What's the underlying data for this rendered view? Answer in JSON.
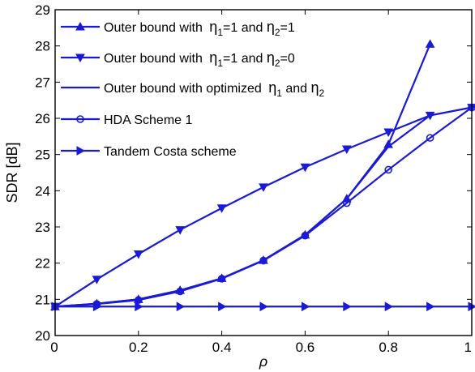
{
  "chart_data": {
    "type": "line",
    "xlabel": "ρ",
    "ylabel": "SDR [dB]",
    "xlim": [
      0,
      1
    ],
    "ylim": [
      20,
      29
    ],
    "xticks": [
      0,
      0.2,
      0.4,
      0.6,
      0.8,
      1
    ],
    "yticks": [
      20,
      21,
      22,
      23,
      24,
      25,
      26,
      27,
      28,
      29
    ],
    "xtick_labels": [
      "0",
      "0.2",
      "0.4",
      "0.6",
      "0.8",
      "1"
    ],
    "ytick_labels": [
      "20",
      "21",
      "22",
      "23",
      "24",
      "25",
      "26",
      "27",
      "28",
      "29"
    ],
    "grid": false,
    "legend_placement": "top-left",
    "line_color": "#1a1ad6",
    "series": [
      {
        "legend_pre": "Outer bound with ",
        "legend_mid": "η",
        "legend_sub1": "1",
        "legend_txt2": "=1 and ",
        "legend_mid2": "η",
        "legend_sub2": "2",
        "legend_txt3": "=1",
        "marker": "triangle-up",
        "x": [
          0,
          0.1,
          0.2,
          0.3,
          0.4,
          0.5,
          0.6,
          0.7,
          0.8,
          0.9
        ],
        "y": [
          20.8,
          20.88,
          21.0,
          21.25,
          21.58,
          22.08,
          22.78,
          23.78,
          25.28,
          28.05
        ]
      },
      {
        "legend_pre": "Outer bound with ",
        "legend_mid": "η",
        "legend_sub1": "1",
        "legend_txt2": "=1 and ",
        "legend_mid2": "η",
        "legend_sub2": "2",
        "legend_txt3": "=0",
        "marker": "triangle-down",
        "x": [
          0,
          0.1,
          0.2,
          0.3,
          0.4,
          0.5,
          0.6,
          0.7,
          0.8,
          0.9,
          1.0
        ],
        "y": [
          20.8,
          21.55,
          22.25,
          22.92,
          23.52,
          24.1,
          24.65,
          25.15,
          25.62,
          26.08,
          26.3
        ]
      },
      {
        "legend_pre": "Outer bound with optimized ",
        "legend_mid": "η",
        "legend_sub1": "1",
        "legend_txt2": " and ",
        "legend_mid2": "η",
        "legend_sub2": "2",
        "legend_txt3": "",
        "marker": "none",
        "x": [
          0,
          0.1,
          0.2,
          0.3,
          0.4,
          0.5,
          0.6,
          0.7,
          0.8,
          0.9,
          1.0
        ],
        "y": [
          20.8,
          20.88,
          21.0,
          21.25,
          21.58,
          22.08,
          22.78,
          23.78,
          25.22,
          26.08,
          26.3
        ]
      },
      {
        "legend_pre": "HDA Scheme 1",
        "marker": "circle",
        "x": [
          0,
          0.1,
          0.2,
          0.3,
          0.4,
          0.5,
          0.6,
          0.7,
          0.8,
          0.9,
          1.0
        ],
        "y": [
          20.8,
          20.87,
          20.98,
          21.22,
          21.57,
          22.07,
          22.76,
          23.66,
          24.58,
          25.46,
          26.3
        ]
      },
      {
        "legend_pre": "Tandem Costa scheme",
        "marker": "triangle-right",
        "x": [
          0,
          0.1,
          0.2,
          0.3,
          0.4,
          0.5,
          0.6,
          0.7,
          0.8,
          0.9,
          1.0
        ],
        "y": [
          20.8,
          20.8,
          20.8,
          20.8,
          20.8,
          20.8,
          20.8,
          20.8,
          20.8,
          20.8,
          20.8
        ]
      }
    ]
  }
}
